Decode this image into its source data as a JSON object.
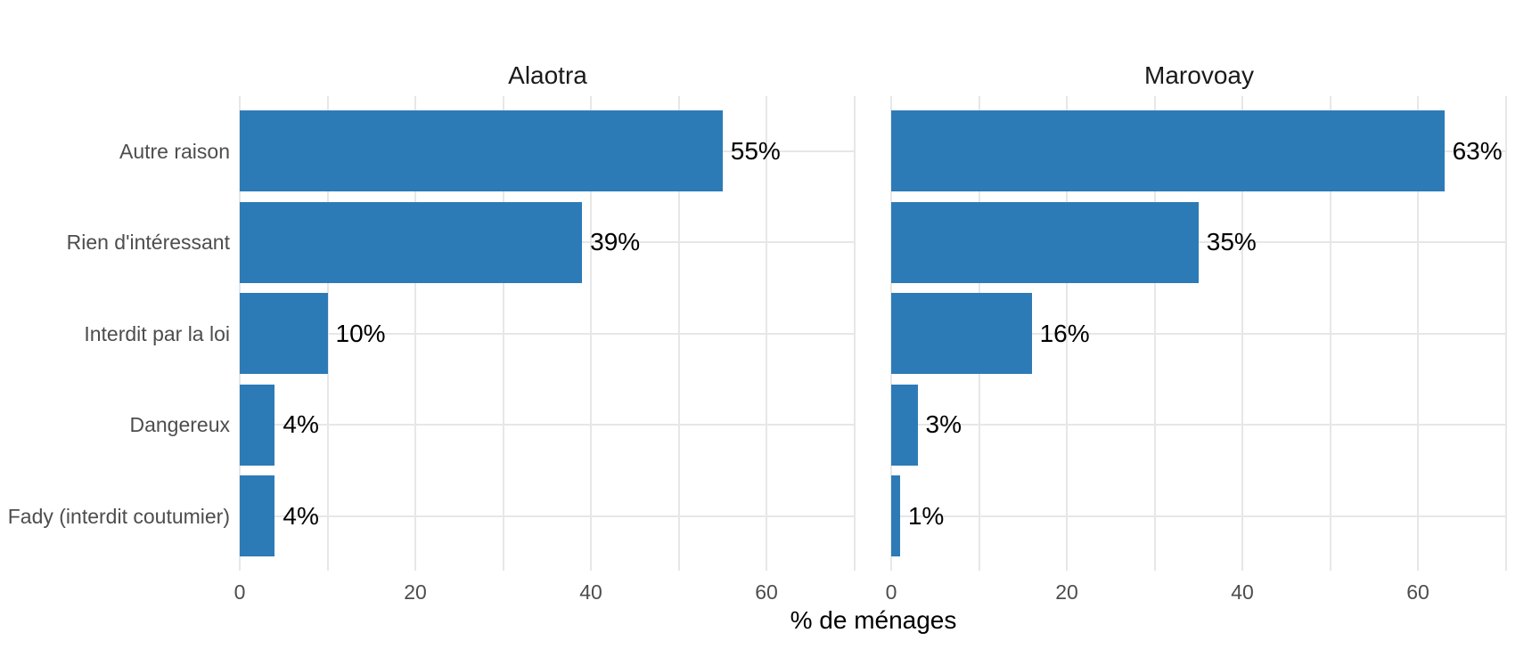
{
  "chart_data": {
    "type": "bar",
    "orientation": "horizontal",
    "xlabel": "% de ménages",
    "categories": [
      "Autre raison",
      "Rien d'intéressant",
      "Interdit par la loi",
      "Dangereux",
      "Fady (interdit coutumier)"
    ],
    "facets": [
      {
        "title": "Alaotra",
        "values": [
          55,
          39,
          10,
          4,
          4
        ],
        "value_labels": [
          "55%",
          "39%",
          "10%",
          "4%",
          "4%"
        ]
      },
      {
        "title": "Marovoay",
        "values": [
          63,
          35,
          16,
          3,
          1
        ],
        "value_labels": [
          "63%",
          "35%",
          "16%",
          "3%",
          "1%"
        ]
      }
    ],
    "x_tick_values": [
      0,
      20,
      40,
      60
    ],
    "x_tick_labels": [
      "0",
      "20",
      "40",
      "60"
    ],
    "x_gridline_values": [
      0,
      10,
      20,
      30,
      40,
      50,
      60,
      70
    ],
    "xlim": [
      0,
      70.15
    ],
    "grid": true,
    "legend_position": "none",
    "colors": {
      "bar": "#2d7bb6",
      "grid": "#e7e7e7",
      "axis_text": "#4d4d4d",
      "facet_title_text": "#1a1a1a",
      "value_label_text": "#000000",
      "background": "#ffffff"
    }
  }
}
